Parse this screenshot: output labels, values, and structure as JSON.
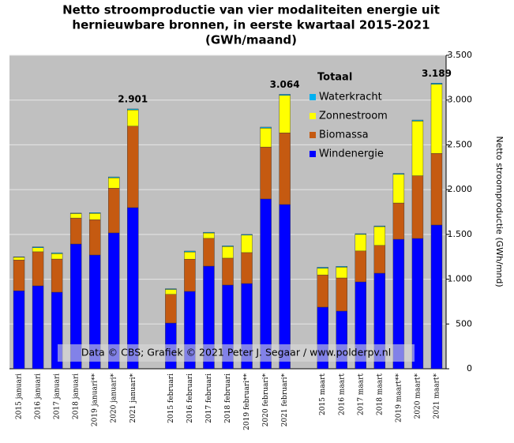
{
  "chart_data": {
    "type": "stacked_bar",
    "title": [
      "Netto stroomproductie  van vier modaliteiten  energie uit",
      "hernieuwbare bronnen, in eerste kwartaal 2015-2021",
      "(GWh/maand)"
    ],
    "y_label": "Netto stroomproductie (GWh/mnd)",
    "legend_title": "Totaal",
    "watermark": "Data © CBS;  Grafiek  © 2021 Peter J. Segaar / www.polderpv.nl",
    "categories": [
      "2015 januari",
      "2016 januari",
      "2017 januari",
      "2018 januari",
      "2019 januari**",
      "2020 januari*",
      "2021 januari*",
      null,
      "2015 februari",
      "2016 februari",
      "2017 februari",
      "2018 februari",
      "2019 februari**",
      "2020 februari*",
      "2021 februari*",
      null,
      "2015 maart",
      "2016 maart",
      "2017 maart",
      "2018 maart",
      "2019 maart**",
      "2020 maart*",
      "2021 maart*"
    ],
    "series": [
      {
        "name": "Windenergie",
        "color": "#0000ff",
        "values": [
          870,
          926,
          855,
          1393,
          1270,
          1517,
          1799,
          null,
          511,
          864,
          1146,
          935,
          952,
          1896,
          1834,
          null,
          688,
          644,
          970,
          1067,
          1446,
          1455,
          1605
        ]
      },
      {
        "name": "Biomassa",
        "color": "#c55a11",
        "values": [
          345,
          380,
          370,
          290,
          395,
          500,
          910,
          null,
          320,
          360,
          310,
          300,
          345,
          580,
          800,
          null,
          360,
          370,
          345,
          310,
          405,
          700,
          800
        ]
      },
      {
        "name": "Zonnestroom",
        "color": "#ffff00",
        "values": [
          30,
          45,
          60,
          50,
          70,
          115,
          180,
          null,
          55,
          80,
          60,
          130,
          195,
          210,
          418,
          null,
          75,
          120,
          185,
          210,
          320,
          610,
          772
        ]
      },
      {
        "name": "Waterkracht",
        "color": "#00b0f0",
        "values": [
          5,
          10,
          10,
          5,
          8,
          10,
          12,
          null,
          8,
          10,
          8,
          8,
          8,
          12,
          12,
          null,
          10,
          10,
          8,
          8,
          10,
          12,
          12
        ]
      }
    ],
    "annotations": [
      {
        "category": "2021 januari*",
        "text": "2.901"
      },
      {
        "category": "2021 februari*",
        "text": "3.064"
      },
      {
        "category": "2021 maart*",
        "text": "3.189"
      }
    ],
    "ylim": [
      0,
      3500
    ],
    "yticks": [
      0,
      500,
      {
        "value": 1000,
        "label": "1.000"
      },
      {
        "value": 1500,
        "label": "1.500"
      },
      {
        "value": 2000,
        "label": "2.000"
      },
      {
        "value": 2500,
        "label": "2.500"
      },
      {
        "value": 3000,
        "label": "3.000"
      },
      {
        "value": 3500,
        "label": "3.500"
      }
    ],
    "grid": true
  }
}
